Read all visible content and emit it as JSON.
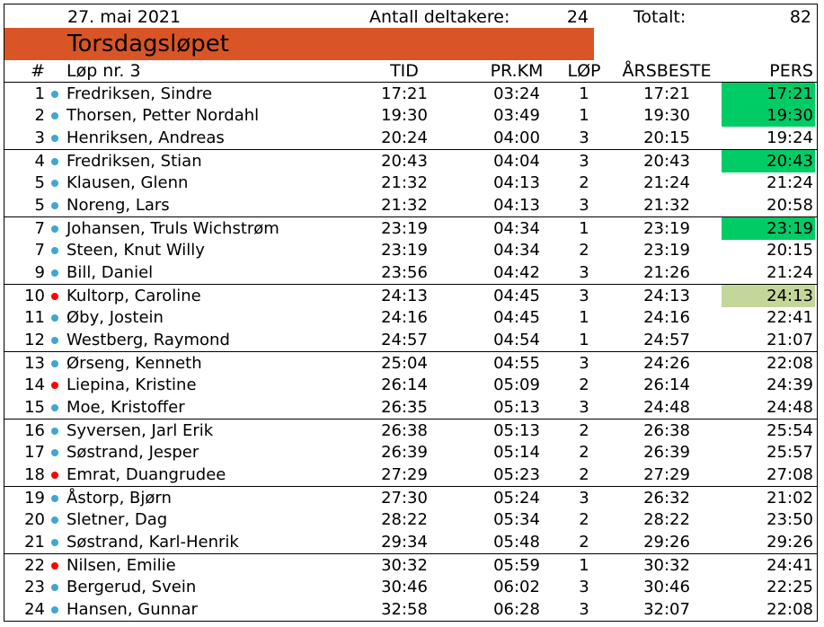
{
  "header": {
    "date": "27. mai 2021",
    "participants_label": "Antall deltakere:",
    "participants_value": "24",
    "total_label": "Totalt:",
    "total_value": "82",
    "title": "Torsdagsløpet",
    "title_bg": "#DA5525"
  },
  "columns": {
    "num": "#",
    "race": "Løp nr. 3",
    "tid": "TID",
    "prkm": "PR.KM",
    "lop": "LØP",
    "aarsbeste": "ÅRSBESTE",
    "pers": "PERS"
  },
  "colors": {
    "dot_blue": "#3FA7D0",
    "dot_red": "#FF0000",
    "pers_new": "#00CC66",
    "pers_tie": "#C4D79B"
  },
  "rows": [
    {
      "num": "1",
      "dot": "blue",
      "name": "Fredriksen, Sindre",
      "tid": "17:21",
      "prkm": "03:24",
      "lop": "1",
      "aars": "17:21",
      "pers": "17:21",
      "hl": "new",
      "sep": true
    },
    {
      "num": "2",
      "dot": "blue",
      "name": "Thorsen, Petter Nordahl",
      "tid": "19:30",
      "prkm": "03:49",
      "lop": "1",
      "aars": "19:30",
      "pers": "19:30",
      "hl": "new",
      "sep": false
    },
    {
      "num": "3",
      "dot": "blue",
      "name": "Henriksen, Andreas",
      "tid": "20:24",
      "prkm": "04:00",
      "lop": "3",
      "aars": "20:15",
      "pers": "19:24",
      "hl": "",
      "sep": false
    },
    {
      "num": "4",
      "dot": "blue",
      "name": "Fredriksen, Stian",
      "tid": "20:43",
      "prkm": "04:04",
      "lop": "3",
      "aars": "20:43",
      "pers": "20:43",
      "hl": "new",
      "sep": true
    },
    {
      "num": "5",
      "dot": "blue",
      "name": "Klausen, Glenn",
      "tid": "21:32",
      "prkm": "04:13",
      "lop": "2",
      "aars": "21:24",
      "pers": "21:24",
      "hl": "",
      "sep": false
    },
    {
      "num": "5",
      "dot": "blue",
      "name": "Noreng, Lars",
      "tid": "21:32",
      "prkm": "04:13",
      "lop": "3",
      "aars": "21:32",
      "pers": "20:58",
      "hl": "",
      "sep": false
    },
    {
      "num": "7",
      "dot": "blue",
      "name": "Johansen, Truls Wichstrøm",
      "tid": "23:19",
      "prkm": "04:34",
      "lop": "1",
      "aars": "23:19",
      "pers": "23:19",
      "hl": "new",
      "sep": true
    },
    {
      "num": "7",
      "dot": "blue",
      "name": "Steen, Knut Willy",
      "tid": "23:19",
      "prkm": "04:34",
      "lop": "2",
      "aars": "23:19",
      "pers": "20:15",
      "hl": "",
      "sep": false
    },
    {
      "num": "9",
      "dot": "blue",
      "name": "Bill, Daniel",
      "tid": "23:56",
      "prkm": "04:42",
      "lop": "3",
      "aars": "21:26",
      "pers": "21:24",
      "hl": "",
      "sep": false
    },
    {
      "num": "10",
      "dot": "red",
      "name": "Kultorp, Caroline",
      "tid": "24:13",
      "prkm": "04:45",
      "lop": "3",
      "aars": "24:13",
      "pers": "24:13",
      "hl": "tie",
      "sep": true
    },
    {
      "num": "11",
      "dot": "blue",
      "name": "Øby, Jostein",
      "tid": "24:16",
      "prkm": "04:45",
      "lop": "1",
      "aars": "24:16",
      "pers": "22:41",
      "hl": "",
      "sep": false
    },
    {
      "num": "12",
      "dot": "blue",
      "name": "Westberg, Raymond",
      "tid": "24:57",
      "prkm": "04:54",
      "lop": "1",
      "aars": "24:57",
      "pers": "21:07",
      "hl": "",
      "sep": false
    },
    {
      "num": "13",
      "dot": "blue",
      "name": "Ørseng, Kenneth",
      "tid": "25:04",
      "prkm": "04:55",
      "lop": "3",
      "aars": "24:26",
      "pers": "22:08",
      "hl": "",
      "sep": true
    },
    {
      "num": "14",
      "dot": "red",
      "name": "Liepina, Kristine",
      "tid": "26:14",
      "prkm": "05:09",
      "lop": "2",
      "aars": "26:14",
      "pers": "24:39",
      "hl": "",
      "sep": false
    },
    {
      "num": "15",
      "dot": "blue",
      "name": "Moe, Kristoffer",
      "tid": "26:35",
      "prkm": "05:13",
      "lop": "3",
      "aars": "24:48",
      "pers": "24:48",
      "hl": "",
      "sep": false
    },
    {
      "num": "16",
      "dot": "blue",
      "name": "Syversen, Jarl Erik",
      "tid": "26:38",
      "prkm": "05:13",
      "lop": "2",
      "aars": "26:38",
      "pers": "25:54",
      "hl": "",
      "sep": true
    },
    {
      "num": "17",
      "dot": "blue",
      "name": "Søstrand, Jesper",
      "tid": "26:39",
      "prkm": "05:14",
      "lop": "2",
      "aars": "26:39",
      "pers": "25:57",
      "hl": "",
      "sep": false
    },
    {
      "num": "18",
      "dot": "red",
      "name": "Emrat, Duangrudee",
      "tid": "27:29",
      "prkm": "05:23",
      "lop": "2",
      "aars": "27:29",
      "pers": "27:08",
      "hl": "",
      "sep": false
    },
    {
      "num": "19",
      "dot": "blue",
      "name": "Åstorp, Bjørn",
      "tid": "27:30",
      "prkm": "05:24",
      "lop": "3",
      "aars": "26:32",
      "pers": "21:02",
      "hl": "",
      "sep": true
    },
    {
      "num": "20",
      "dot": "blue",
      "name": "Sletner, Dag",
      "tid": "28:22",
      "prkm": "05:34",
      "lop": "2",
      "aars": "28:22",
      "pers": "23:50",
      "hl": "",
      "sep": false
    },
    {
      "num": "21",
      "dot": "blue",
      "name": "Søstrand, Karl-Henrik",
      "tid": "29:34",
      "prkm": "05:48",
      "lop": "2",
      "aars": "29:26",
      "pers": "29:26",
      "hl": "",
      "sep": false
    },
    {
      "num": "22",
      "dot": "red",
      "name": "Nilsen, Emilie",
      "tid": "30:32",
      "prkm": "05:59",
      "lop": "1",
      "aars": "30:32",
      "pers": "24:41",
      "hl": "",
      "sep": true
    },
    {
      "num": "23",
      "dot": "blue",
      "name": "Bergerud, Svein",
      "tid": "30:46",
      "prkm": "06:02",
      "lop": "3",
      "aars": "30:46",
      "pers": "22:25",
      "hl": "",
      "sep": false
    },
    {
      "num": "24",
      "dot": "blue",
      "name": "Hansen, Gunnar",
      "tid": "32:58",
      "prkm": "06:28",
      "lop": "3",
      "aars": "32:07",
      "pers": "22:08",
      "hl": "",
      "sep": false
    }
  ]
}
